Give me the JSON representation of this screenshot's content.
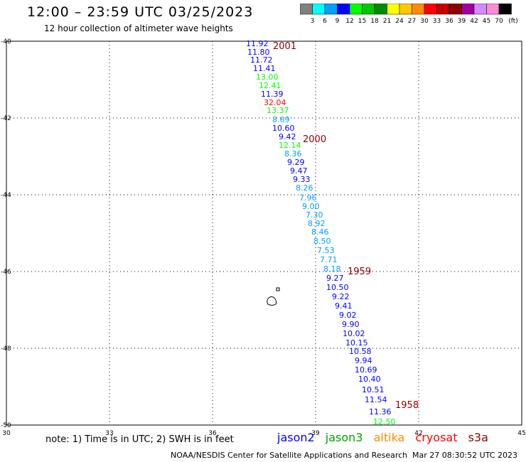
{
  "header": {
    "title": "12:00 – 23:59 UTC 03/25/2023",
    "subtitle": "12 hour collection of altimeter wave heights"
  },
  "colorbar": {
    "unit": "(ft)",
    "bins": [
      {
        "label": "3",
        "color": "#808080"
      },
      {
        "label": "6",
        "color": "#00ffff"
      },
      {
        "label": "9",
        "color": "#00a0ff"
      },
      {
        "label": "12",
        "color": "#0000ff"
      },
      {
        "label": "15",
        "color": "#00ff00"
      },
      {
        "label": "18",
        "color": "#00c800"
      },
      {
        "label": "21",
        "color": "#008c00"
      },
      {
        "label": "24",
        "color": "#ffff00"
      },
      {
        "label": "27",
        "color": "#ffc800"
      },
      {
        "label": "30",
        "color": "#ff8c00"
      },
      {
        "label": "33",
        "color": "#ff0000"
      },
      {
        "label": "36",
        "color": "#c80000"
      },
      {
        "label": "39",
        "color": "#8c0000"
      },
      {
        "label": "42",
        "color": "#a000a0"
      },
      {
        "label": "45",
        "color": "#d28cff"
      },
      {
        "label": "70",
        "color": "#ff8cd2"
      },
      {
        "label": "",
        "color": "#000000"
      }
    ]
  },
  "axes": {
    "lon_ticks": [
      "30",
      "33",
      "36",
      "39",
      "42",
      "45"
    ],
    "lat_ticks": [
      "-40",
      "-42",
      "-44",
      "-46",
      "-48",
      "-50"
    ]
  },
  "time_labels": [
    "2001",
    "2000",
    "1959",
    "1958"
  ],
  "wave_readings": [
    {
      "v": "11.92",
      "c": "#0000ff"
    },
    {
      "v": "11.80",
      "c": "#0000ff"
    },
    {
      "v": "11.72",
      "c": "#0000ff"
    },
    {
      "v": "11.41",
      "c": "#0000ff"
    },
    {
      "v": "13.00",
      "c": "#00ff00"
    },
    {
      "v": "12.41",
      "c": "#00ff00"
    },
    {
      "v": "11.39",
      "c": "#0000ff"
    },
    {
      "v": "32.04",
      "c": "#ff0000"
    },
    {
      "v": "13.37",
      "c": "#00ff00"
    },
    {
      "v": "8.69",
      "c": "#00a0ff"
    },
    {
      "v": "10.60",
      "c": "#0000ff"
    },
    {
      "v": "9.42",
      "c": "#0000ff"
    },
    {
      "v": "12.14",
      "c": "#00ff00"
    },
    {
      "v": "8.36",
      "c": "#00a0ff"
    },
    {
      "v": "9.29",
      "c": "#0000ff"
    },
    {
      "v": "9.47",
      "c": "#0000ff"
    },
    {
      "v": "9.33",
      "c": "#0000ff"
    },
    {
      "v": "8.26",
      "c": "#00a0ff"
    },
    {
      "v": "7.96",
      "c": "#00a0ff"
    },
    {
      "v": "9.00",
      "c": "#00a0ff"
    },
    {
      "v": "7.30",
      "c": "#00a0ff"
    },
    {
      "v": "8.92",
      "c": "#00a0ff"
    },
    {
      "v": "8.46",
      "c": "#00a0ff"
    },
    {
      "v": "8.50",
      "c": "#00a0ff"
    },
    {
      "v": "7.53",
      "c": "#00a0ff"
    },
    {
      "v": "7.71",
      "c": "#00a0ff"
    },
    {
      "v": "8.18",
      "c": "#00a0ff"
    },
    {
      "v": "9.27",
      "c": "#0000ff"
    },
    {
      "v": "10.50",
      "c": "#0000ff"
    },
    {
      "v": "9.22",
      "c": "#0000ff"
    },
    {
      "v": "9.41",
      "c": "#0000ff"
    },
    {
      "v": "9.02",
      "c": "#0000ff"
    },
    {
      "v": "9.90",
      "c": "#0000ff"
    },
    {
      "v": "10.02",
      "c": "#0000ff"
    },
    {
      "v": "10.15",
      "c": "#0000ff"
    },
    {
      "v": "10.58",
      "c": "#0000ff"
    },
    {
      "v": "9.94",
      "c": "#0000ff"
    },
    {
      "v": "10.69",
      "c": "#0000ff"
    },
    {
      "v": "10.40",
      "c": "#0000ff"
    },
    {
      "v": "10.51",
      "c": "#0000ff"
    },
    {
      "v": "11.54",
      "c": "#0000ff"
    },
    {
      "v": "11.36",
      "c": "#0000ff"
    },
    {
      "v": "12.50",
      "c": "#00ff00"
    }
  ],
  "footer": {
    "note": "note:  1) Time is in UTC;  2) SWH is in feet",
    "satellites": [
      {
        "name": "jason2",
        "color": "#0000ff"
      },
      {
        "name": "jason3",
        "color": "#00a000"
      },
      {
        "name": "altika",
        "color": "#ff8c00"
      },
      {
        "name": "cryosat",
        "color": "#ff0000"
      },
      {
        "name": "s3a",
        "color": "#8c0000"
      }
    ],
    "credit": "NOAA/NESDIS Center for Satellite Applications and Research",
    "timestamp": "Mar 27 08:30:52 UTC 2023"
  }
}
